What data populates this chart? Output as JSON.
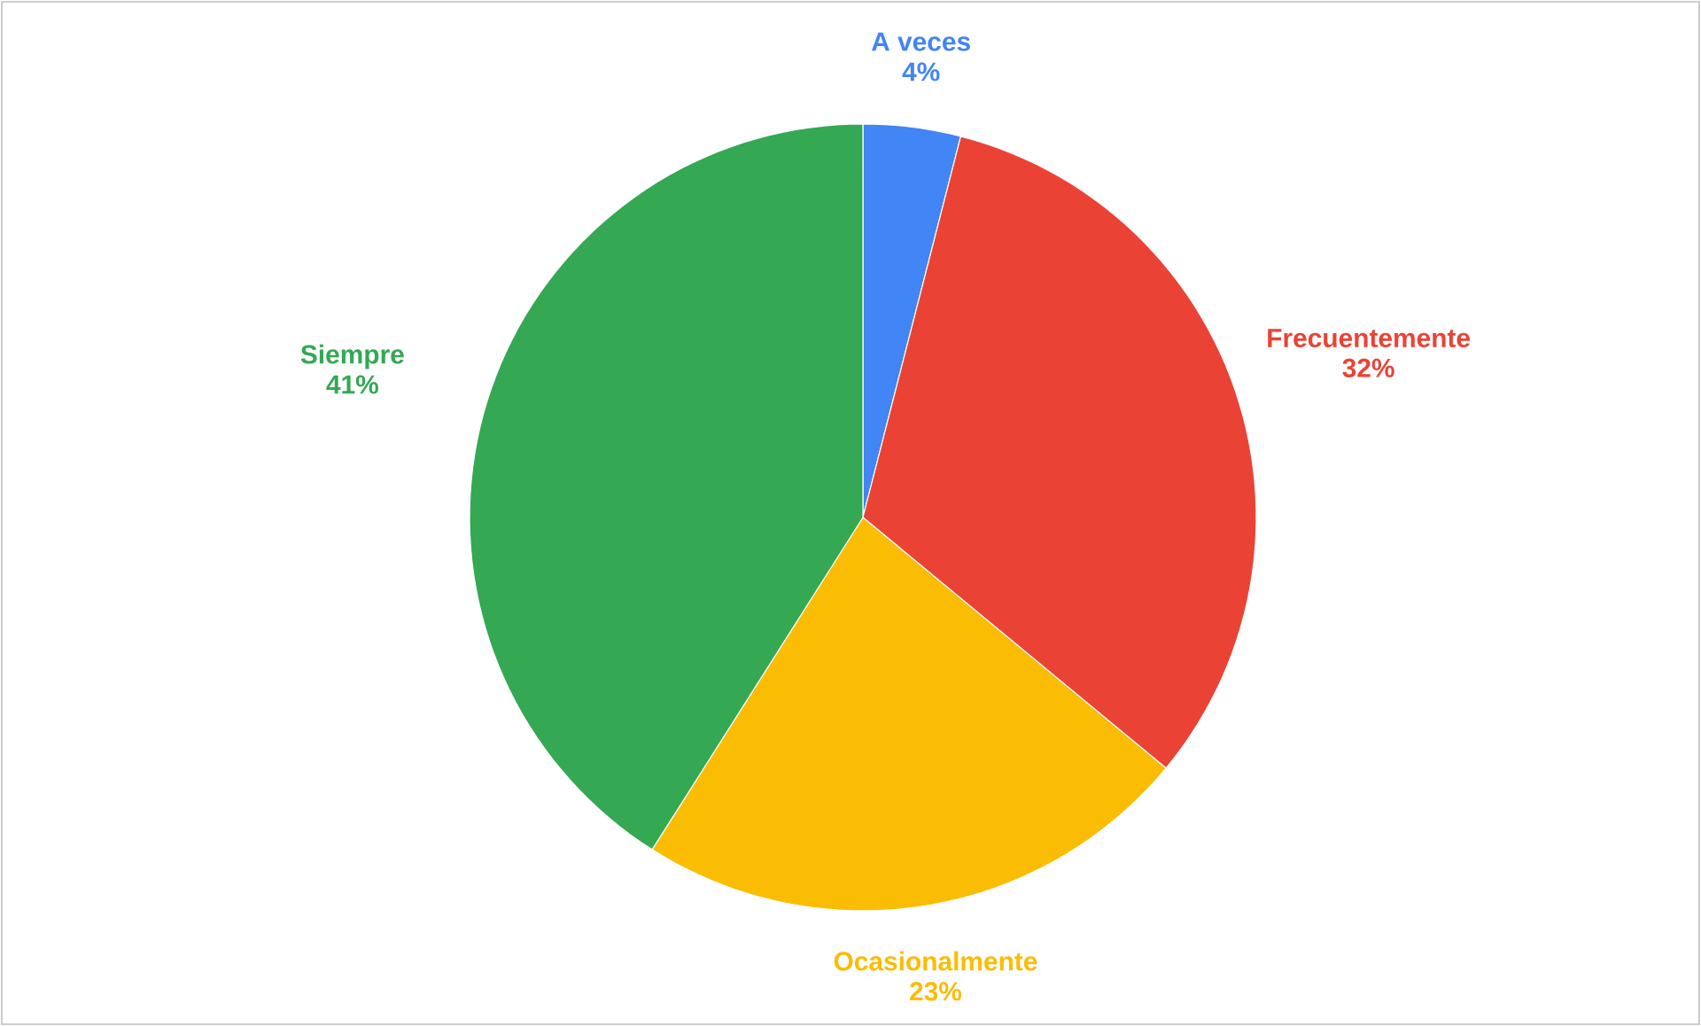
{
  "chart_data": {
    "type": "pie",
    "categories": [
      "A veces",
      "Frecuentemente",
      "Ocasionalmente",
      "Siempre"
    ],
    "values": [
      4,
      32,
      23,
      41
    ],
    "value_labels": [
      "4%",
      "32%",
      "23%",
      "41%"
    ],
    "colors": [
      "#4285f4",
      "#ea4335",
      "#fbbc04",
      "#34a853"
    ]
  }
}
